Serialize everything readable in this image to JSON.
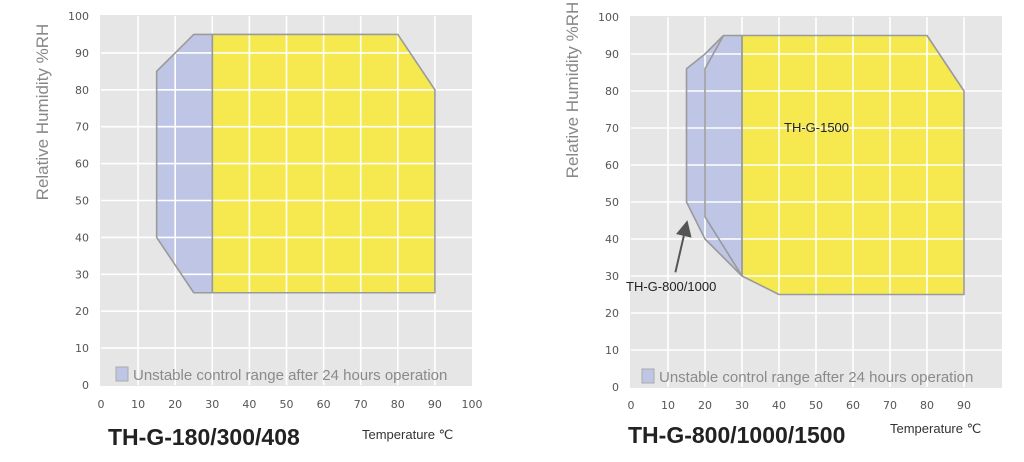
{
  "chart_data": [
    {
      "type": "area",
      "title": "TH-G-180/300/408",
      "xlabel": "Temperature ℃",
      "ylabel": "Relative Humidity %RH",
      "xlim": [
        0,
        100
      ],
      "ylim": [
        0,
        100
      ],
      "xticks": [
        0,
        10,
        20,
        30,
        40,
        50,
        60,
        70,
        80,
        90,
        100
      ],
      "yticks": [
        0,
        10,
        20,
        30,
        40,
        50,
        60,
        70,
        80,
        90,
        100
      ],
      "grid": true,
      "legend": {
        "label": "Unstable control range after 24 hours operation",
        "color": "#bfc5e4",
        "placement": "bottom"
      },
      "regions": [
        {
          "kind": "unstable",
          "color": "#bfc5e4",
          "points": [
            [
              15,
              85
            ],
            [
              20,
              90
            ],
            [
              25,
              95
            ],
            [
              30,
              95
            ],
            [
              30,
              25
            ],
            [
              25,
              25
            ],
            [
              15,
              40
            ]
          ]
        },
        {
          "kind": "stable",
          "color": "#f5e94f",
          "points": [
            [
              30,
              95
            ],
            [
              80,
              95
            ],
            [
              90,
              80
            ],
            [
              90,
              25
            ],
            [
              30,
              25
            ]
          ]
        }
      ],
      "annotations": []
    },
    {
      "type": "area",
      "title": "TH-G-800/1000/1500",
      "xlabel": "Temperature ℃",
      "ylabel": "Relative Humidity %RH",
      "xlim": [
        0,
        100
      ],
      "ylim": [
        0,
        100
      ],
      "xticks": [
        0,
        10,
        20,
        30,
        40,
        50,
        60,
        70,
        80,
        90
      ],
      "yticks": [
        0,
        10,
        20,
        30,
        40,
        50,
        60,
        70,
        80,
        90,
        100
      ],
      "grid": true,
      "legend": {
        "label": "Unstable control range after 24 hours operation",
        "color": "#bfc5e4",
        "placement": "bottom"
      },
      "regions": [
        {
          "kind": "unstable",
          "color": "#bfc5e4",
          "points": [
            [
              15,
              86
            ],
            [
              20,
              90
            ],
            [
              25,
              95
            ],
            [
              30,
              95
            ],
            [
              30,
              30
            ],
            [
              20,
              40
            ],
            [
              15,
              50
            ]
          ]
        },
        {
          "kind": "boundary-1500",
          "color": "none",
          "points": [
            [
              25,
              95
            ],
            [
              20,
              86
            ],
            [
              20,
              46
            ],
            [
              30,
              30
            ]
          ]
        },
        {
          "kind": "stable",
          "color": "#f5e94f",
          "points": [
            [
              30,
              95
            ],
            [
              80,
              95
            ],
            [
              90,
              80
            ],
            [
              90,
              25
            ],
            [
              40,
              25
            ],
            [
              30,
              30
            ]
          ]
        }
      ],
      "annotations": [
        {
          "text": "TH-G-1500",
          "at": [
            50,
            70
          ]
        },
        {
          "text": "TH-G-800/1000",
          "at": [
            0,
            27
          ],
          "arrow_from": [
            12,
            31
          ],
          "arrow_to": [
            15,
            44
          ]
        }
      ]
    }
  ]
}
